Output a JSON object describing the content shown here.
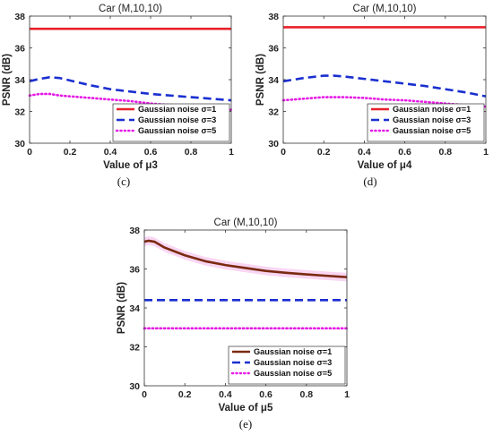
{
  "chart_data": [
    {
      "type": "line",
      "panel": "c",
      "caption": "(c)",
      "title": "Car (M,10,10)",
      "xlabel": "Value of μ3",
      "ylabel": "PSNR (dB)",
      "xlim": [
        0,
        1
      ],
      "ylim": [
        30,
        38
      ],
      "xticks": [
        0,
        0.2,
        0.4,
        0.6,
        0.8,
        1
      ],
      "xtick_labels": [
        "0",
        "0.2",
        "0.4",
        "0.6",
        "0.8",
        "1"
      ],
      "yticks": [
        30,
        32,
        34,
        36,
        38
      ],
      "ytick_labels": [
        "30",
        "32",
        "34",
        "36",
        "38"
      ],
      "grid": false,
      "legend_position": "bottom-right",
      "x": [
        0,
        0.05,
        0.1,
        0.15,
        0.2,
        0.3,
        0.4,
        0.5,
        0.6,
        0.7,
        0.8,
        0.9,
        1
      ],
      "series": [
        {
          "name": "Gaussian noise σ=1",
          "color": "#e8202a",
          "dash": "solid",
          "values": [
            37.2,
            37.2,
            37.2,
            37.2,
            37.2,
            37.2,
            37.2,
            37.2,
            37.2,
            37.2,
            37.2,
            37.2,
            37.2
          ]
        },
        {
          "name": "Gaussian noise σ=3",
          "color": "#1a2fd0",
          "dash": "dashed",
          "values": [
            33.9,
            34.05,
            34.15,
            34.1,
            33.95,
            33.65,
            33.4,
            33.25,
            33.1,
            33.0,
            32.9,
            32.8,
            32.7
          ]
        },
        {
          "name": "Gaussian noise σ=5",
          "color": "#e619e6",
          "dash": "dotted",
          "values": [
            33.0,
            33.1,
            33.1,
            33.0,
            32.95,
            32.85,
            32.75,
            32.65,
            32.5,
            32.4,
            32.3,
            32.2,
            32.1
          ]
        }
      ]
    },
    {
      "type": "line",
      "panel": "d",
      "caption": "(d)",
      "title": "Car (M,10,10)",
      "xlabel": "Value of μ4",
      "ylabel": "PSNR (dB)",
      "xlim": [
        0,
        1
      ],
      "ylim": [
        30,
        38
      ],
      "xticks": [
        0,
        0.2,
        0.4,
        0.6,
        0.8,
        1
      ],
      "xtick_labels": [
        "0",
        "0.2",
        "0.4",
        "0.6",
        "0.8",
        "1"
      ],
      "yticks": [
        30,
        32,
        34,
        36,
        38
      ],
      "ytick_labels": [
        "30",
        "32",
        "34",
        "36",
        "38"
      ],
      "grid": false,
      "legend_position": "bottom-right",
      "x": [
        0,
        0.1,
        0.2,
        0.25,
        0.3,
        0.4,
        0.5,
        0.6,
        0.7,
        0.8,
        0.9,
        1
      ],
      "series": [
        {
          "name": "Gaussian noise σ=1",
          "color": "#e8202a",
          "dash": "solid",
          "values": [
            37.3,
            37.3,
            37.3,
            37.3,
            37.3,
            37.3,
            37.3,
            37.3,
            37.3,
            37.3,
            37.3,
            37.3
          ]
        },
        {
          "name": "Gaussian noise σ=3",
          "color": "#1a2fd0",
          "dash": "dashed",
          "values": [
            33.9,
            34.1,
            34.25,
            34.25,
            34.2,
            34.05,
            33.9,
            33.75,
            33.6,
            33.4,
            33.2,
            32.95
          ]
        },
        {
          "name": "Gaussian noise σ=5",
          "color": "#e619e6",
          "dash": "dotted",
          "values": [
            32.7,
            32.8,
            32.9,
            32.9,
            32.9,
            32.85,
            32.75,
            32.7,
            32.6,
            32.5,
            32.4,
            32.3
          ]
        }
      ]
    },
    {
      "type": "line",
      "panel": "e",
      "caption": "(e)",
      "title": "Car (M,10,10)",
      "xlabel": "Value of μ5",
      "ylabel": "PSNR (dB)",
      "xlim": [
        0,
        1
      ],
      "ylim": [
        30,
        38
      ],
      "xticks": [
        0,
        0.2,
        0.4,
        0.6,
        0.8,
        1
      ],
      "xtick_labels": [
        "0",
        "0.2",
        "0.4",
        "0.6",
        "0.8",
        "1"
      ],
      "yticks": [
        30,
        32,
        34,
        36,
        38
      ],
      "ytick_labels": [
        "30",
        "32",
        "34",
        "36",
        "38"
      ],
      "grid": false,
      "legend_position": "bottom-right",
      "x": [
        0,
        0.02,
        0.05,
        0.1,
        0.2,
        0.3,
        0.4,
        0.5,
        0.6,
        0.7,
        0.8,
        0.9,
        1
      ],
      "series": [
        {
          "name": "Gaussian noise σ=1",
          "color": "#7a2a10",
          "dash": "solid",
          "band_color": "#f7c8ef",
          "values": [
            37.4,
            37.45,
            37.4,
            37.1,
            36.7,
            36.4,
            36.2,
            36.05,
            35.9,
            35.8,
            35.72,
            35.65,
            35.58
          ]
        },
        {
          "name": "Gaussian noise σ=3",
          "color": "#1a2fd0",
          "dash": "dashed",
          "values": [
            34.4,
            34.4,
            34.4,
            34.4,
            34.4,
            34.4,
            34.4,
            34.4,
            34.4,
            34.4,
            34.4,
            34.4,
            34.4
          ]
        },
        {
          "name": "Gaussian noise σ=5",
          "color": "#e619e6",
          "dash": "dotted",
          "values": [
            32.95,
            32.95,
            32.95,
            32.95,
            32.95,
            32.95,
            32.95,
            32.95,
            32.95,
            32.95,
            32.95,
            32.95,
            32.95
          ]
        }
      ]
    }
  ]
}
